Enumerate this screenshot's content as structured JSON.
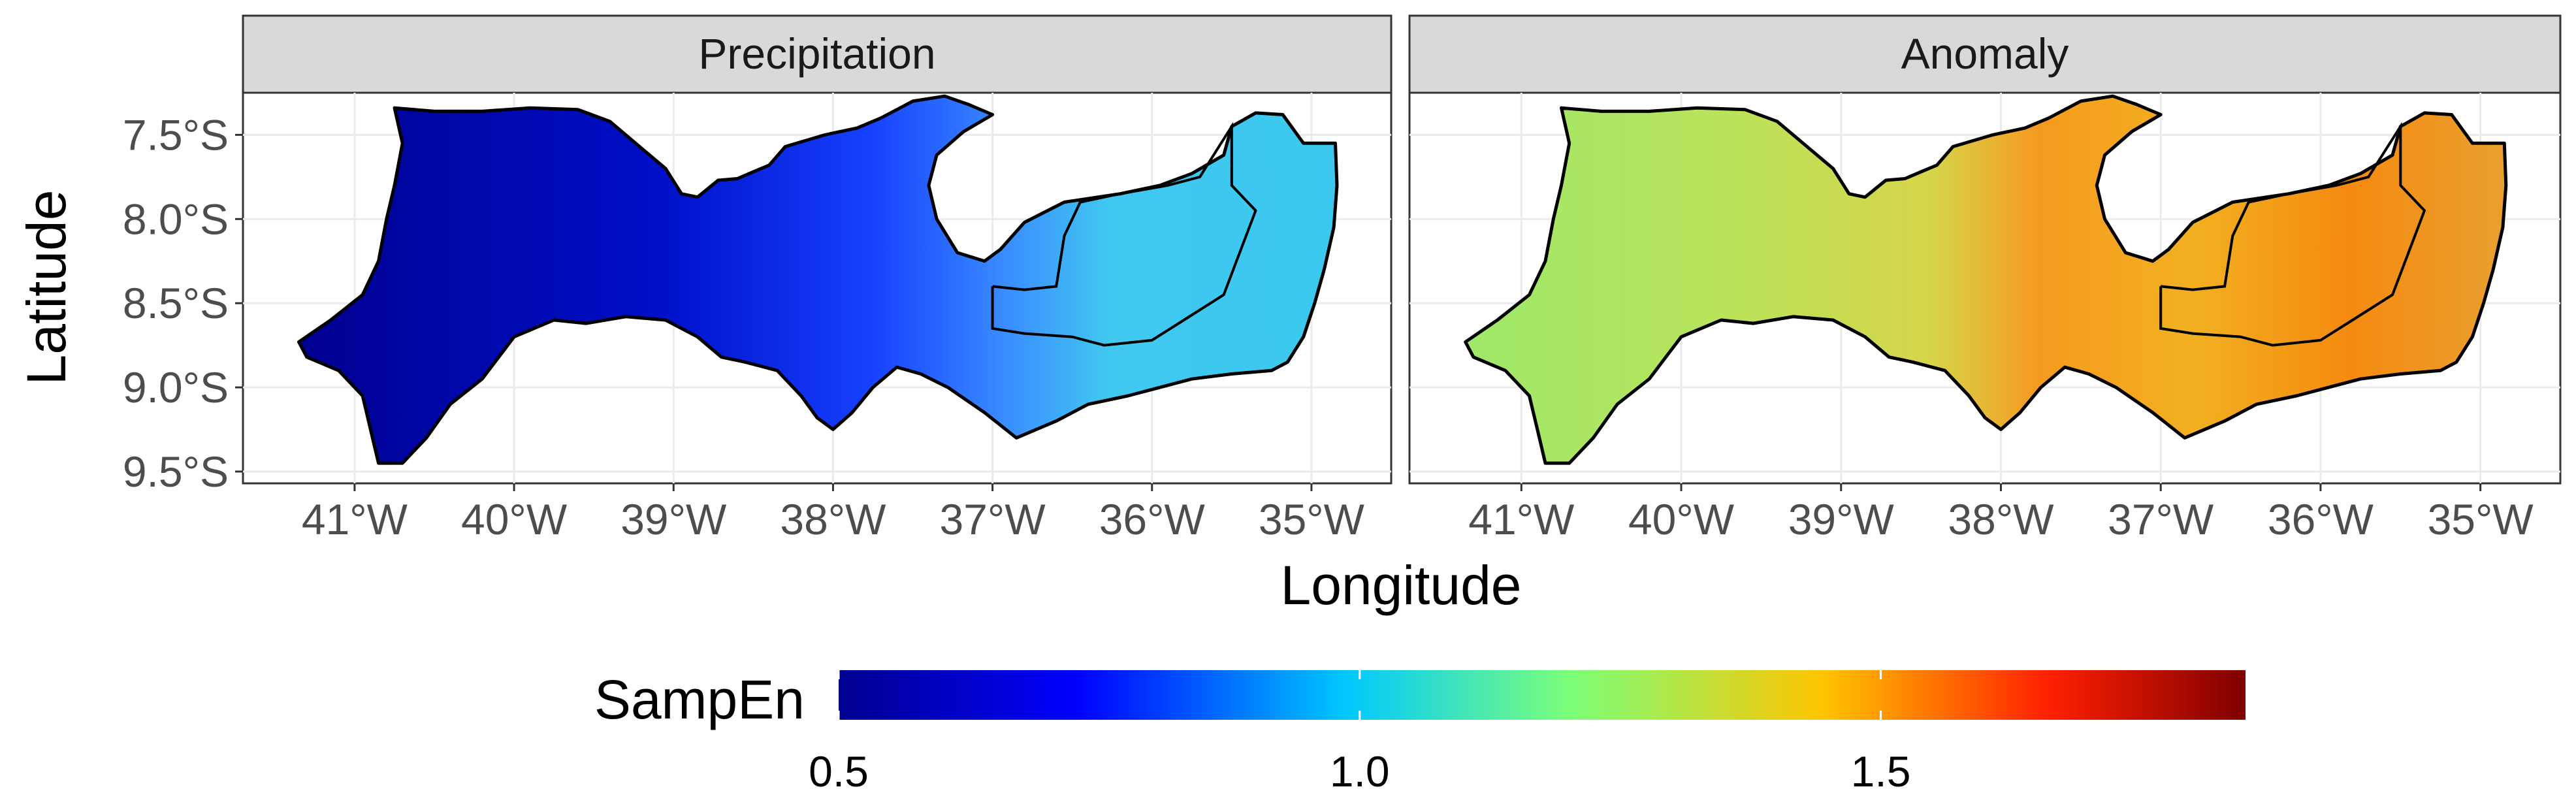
{
  "panels": [
    {
      "id": "precipitation",
      "title": "Precipitation"
    },
    {
      "id": "anomaly",
      "title": "Anomaly"
    }
  ],
  "x_axis": {
    "title": "Longitude",
    "ticks": [
      {
        "value": -41,
        "label": "41°W"
      },
      {
        "value": -40,
        "label": "40°W"
      },
      {
        "value": -39,
        "label": "39°W"
      },
      {
        "value": -38,
        "label": "38°W"
      },
      {
        "value": -37,
        "label": "37°W"
      },
      {
        "value": -36,
        "label": "36°W"
      },
      {
        "value": -35,
        "label": "35°W"
      }
    ],
    "range": [
      -41.7,
      -34.5
    ]
  },
  "y_axis": {
    "title": "Latitude",
    "ticks": [
      {
        "value": -7.5,
        "label": "7.5°S"
      },
      {
        "value": -8.0,
        "label": "8.0°S"
      },
      {
        "value": -8.5,
        "label": "8.5°S"
      },
      {
        "value": -9.0,
        "label": "9.0°S"
      },
      {
        "value": -9.5,
        "label": "9.5°S"
      }
    ],
    "range": [
      -9.57,
      -7.25
    ]
  },
  "legend": {
    "title": "SampEn",
    "range": [
      0.5,
      1.85
    ],
    "ticks": [
      {
        "value": 0.5,
        "label": "0.5"
      },
      {
        "value": 1.0,
        "label": "1.0"
      },
      {
        "value": 1.5,
        "label": "1.5"
      }
    ],
    "colors": [
      "#00008f",
      "#0000ff",
      "#00c8ff",
      "#7cff79",
      "#ffc400",
      "#ff2000",
      "#7f0000"
    ]
  },
  "grid": true,
  "chart_data": [
    {
      "type": "heatmap",
      "title": "Precipitation",
      "xlabel": "Longitude",
      "ylabel": "Latitude",
      "values_description_unit": "SampEn",
      "gradient_by_longitude": [
        {
          "lon": -41.3,
          "value": 0.55
        },
        {
          "lon": -40.0,
          "value": 0.58
        },
        {
          "lon": -39.0,
          "value": 0.62
        },
        {
          "lon": -38.0,
          "value": 0.82
        },
        {
          "lon": -37.0,
          "value": 0.98
        },
        {
          "lon": -36.0,
          "value": 1.0
        },
        {
          "lon": -35.0,
          "value": 0.97
        }
      ]
    },
    {
      "type": "heatmap",
      "title": "Anomaly",
      "xlabel": "Longitude",
      "ylabel": "Latitude",
      "values_description_unit": "SampEn",
      "gradient_by_longitude": [
        {
          "lon": -41.3,
          "value": 1.2
        },
        {
          "lon": -40.0,
          "value": 1.25
        },
        {
          "lon": -39.0,
          "value": 1.3
        },
        {
          "lon": -38.0,
          "value": 1.55
        },
        {
          "lon": -37.0,
          "value": 1.55
        },
        {
          "lon": -36.0,
          "value": 1.6
        },
        {
          "lon": -35.0,
          "value": 1.45
        }
      ]
    }
  ]
}
